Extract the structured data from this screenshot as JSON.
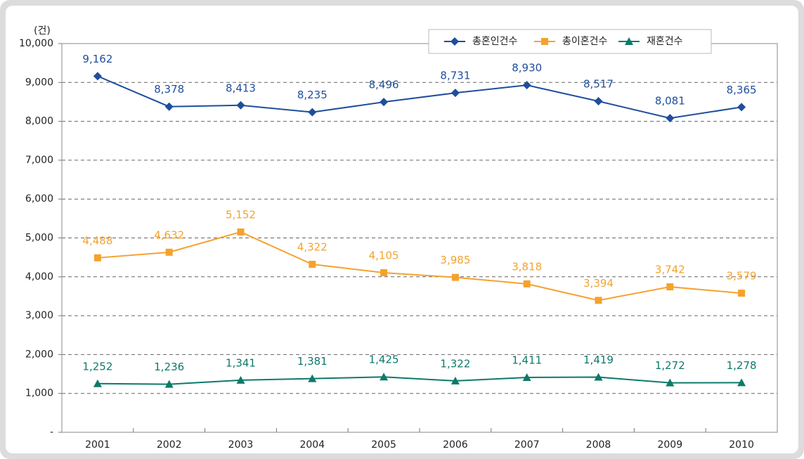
{
  "chart_data": {
    "type": "line",
    "y_unit_label": "(건)",
    "categories": [
      "2001",
      "2002",
      "2003",
      "2004",
      "2005",
      "2006",
      "2007",
      "2008",
      "2009",
      "2010"
    ],
    "series": [
      {
        "name": "총혼인건수",
        "color": "#1f4e9c",
        "marker": "diamond",
        "values": [
          9162,
          8378,
          8413,
          8235,
          8496,
          8731,
          8930,
          8517,
          8081,
          8365
        ],
        "value_labels": [
          "9,162",
          "8,378",
          "8,413",
          "8,235",
          "8,496",
          "8,731",
          "8,930",
          "8,517",
          "8,081",
          "8,365"
        ]
      },
      {
        "name": "총이혼건수",
        "color": "#f5a22d",
        "marker": "square",
        "values": [
          4488,
          4632,
          5152,
          4322,
          4105,
          3985,
          3818,
          3394,
          3742,
          3579
        ],
        "value_labels": [
          "4,488",
          "4,632",
          "5,152",
          "4,322",
          "4,105",
          "3,985",
          "3,818",
          "3,394",
          "3,742",
          "3,579"
        ]
      },
      {
        "name": "재혼건수",
        "color": "#0d7a69",
        "marker": "triangle",
        "values": [
          1252,
          1236,
          1341,
          1381,
          1425,
          1322,
          1411,
          1419,
          1272,
          1278
        ],
        "value_labels": [
          "1,252",
          "1,236",
          "1,341",
          "1,381",
          "1,425",
          "1,322",
          "1,411",
          "1,419",
          "1,272",
          "1,278"
        ]
      }
    ],
    "ylim": [
      0,
      10000
    ],
    "yticks": [
      {
        "value": 0,
        "label": "-"
      },
      {
        "value": 1000,
        "label": "1,000"
      },
      {
        "value": 2000,
        "label": "2,000"
      },
      {
        "value": 3000,
        "label": "3,000"
      },
      {
        "value": 4000,
        "label": "4,000"
      },
      {
        "value": 5000,
        "label": "5,000"
      },
      {
        "value": 6000,
        "label": "6,000"
      },
      {
        "value": 7000,
        "label": "7,000"
      },
      {
        "value": 8000,
        "label": "8,000"
      },
      {
        "value": 9000,
        "label": "9,000"
      },
      {
        "value": 10000,
        "label": "10,000"
      }
    ],
    "grid": true,
    "legend": "top-right"
  }
}
